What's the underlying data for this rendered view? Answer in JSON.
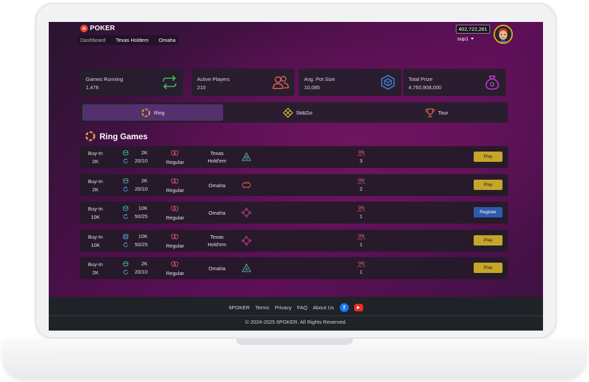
{
  "brand": {
    "name": "POKER",
    "logo_mark": "6"
  },
  "nav": {
    "items": [
      "Dashboard",
      "Texas Holdem",
      "Omaha"
    ]
  },
  "account": {
    "balance": "402,722,261",
    "username": "sup1"
  },
  "stats": [
    {
      "label": "Games Running",
      "value": "1,476",
      "icon": "repeat-icon",
      "color": "#3fbf5f"
    },
    {
      "label": "Active Players",
      "value": "210",
      "icon": "users-icon",
      "color": "#d9674f"
    },
    {
      "label": "Avg. Pot Size",
      "value": "10,085",
      "icon": "cube-icon",
      "color": "#3a84d6"
    },
    {
      "label": "Total Prize",
      "value": "4,750,908,000",
      "icon": "prize-bag-icon",
      "color": "#c43fd6"
    }
  ],
  "tabs": [
    {
      "label": "Ring",
      "icon": "ring-icon",
      "active": true
    },
    {
      "label": "Sit&Go",
      "icon": "diamond-grid-icon",
      "active": false
    },
    {
      "label": "Tour",
      "icon": "trophy-icon",
      "active": false
    }
  ],
  "section": {
    "title": "Ring Games",
    "icon": "ring-icon"
  },
  "games": [
    {
      "buyin_label": "Buy-In",
      "buyin": "2K",
      "stack": "2K",
      "blinds": "20/10",
      "mode": "Regular",
      "game_line1": "Texas",
      "game_line2": "Hold'em",
      "players": "3",
      "action": "Play",
      "action_type": "play",
      "icon_color": "#4fb7a7"
    },
    {
      "buyin_label": "Buy-In",
      "buyin": "2K",
      "stack": "2K",
      "blinds": "20/10",
      "mode": "Regular",
      "game_line1": "Omaha",
      "game_line2": "",
      "players": "2",
      "action": "Play",
      "action_type": "play",
      "icon_color": "#d9674f"
    },
    {
      "buyin_label": "Buy-In",
      "buyin": "10K",
      "stack": "10K",
      "blinds": "50/25",
      "mode": "Regular",
      "game_line1": "Omaha",
      "game_line2": "",
      "players": "1",
      "action": "Register",
      "action_type": "reg",
      "icon_color": "#c43f8f"
    },
    {
      "buyin_label": "Buy-In",
      "buyin": "10K",
      "stack": "10K",
      "blinds": "50/25",
      "mode": "Regular",
      "game_line1": "Texas",
      "game_line2": "Hold'em",
      "players": "1",
      "action": "Play",
      "action_type": "play",
      "icon_color": "#c43f8f"
    },
    {
      "buyin_label": "Buy-In",
      "buyin": "2K",
      "stack": "2K",
      "blinds": "20/10",
      "mode": "Regular",
      "game_line1": "Omaha",
      "game_line2": "",
      "players": "1",
      "action": "Play",
      "action_type": "play",
      "icon_color": "#4fb7a7"
    }
  ],
  "footer": {
    "links": [
      "6POKER",
      "Terms",
      "Privacy",
      "FAQ",
      "About Us"
    ],
    "social": [
      {
        "name": "facebook-icon",
        "glyph": "f"
      },
      {
        "name": "youtube-icon",
        "glyph": "▶"
      }
    ],
    "copyright": "© 2024-2025 6POKER. All Rights Reserved."
  }
}
